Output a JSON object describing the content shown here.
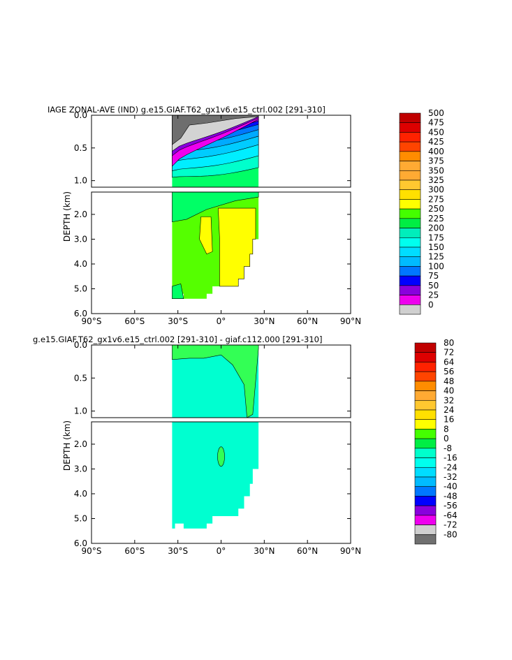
{
  "chart_data": [
    {
      "type": "heatmap",
      "title": "IAGE ZONAL-AVE (IND) g.e15.GIAF.T62_gx1v6.e15_ctrl.002 [291-310]",
      "ylabel": "DEPTH (km)",
      "x_ticks": [
        "90°S",
        "60°S",
        "30°S",
        "0°",
        "30°N",
        "60°N",
        "90°N"
      ],
      "x_tick_values": [
        -90,
        -60,
        -30,
        0,
        30,
        60,
        90
      ],
      "upper_y_ticks": [
        "0.0",
        "0.5",
        "1.0"
      ],
      "upper_y_tick_values": [
        0.0,
        0.5,
        1.0
      ],
      "lower_y_ticks": [
        "2.0",
        "3.0",
        "4.0",
        "5.0",
        "6.0"
      ],
      "lower_y_tick_values": [
        2,
        3,
        4,
        5,
        6
      ],
      "ylim_upper": [
        0,
        1.1
      ],
      "ylim_lower": [
        1.1,
        6.0
      ],
      "xlim": [
        -90,
        90
      ],
      "data_lat_range": [
        -34,
        26
      ],
      "colorbar_levels": [
        "500",
        "475",
        "450",
        "425",
        "400",
        "375",
        "350",
        "325",
        "300",
        "275",
        "250",
        "225",
        "200",
        "175",
        "150",
        "125",
        "100",
        "75",
        "50",
        "25",
        "0"
      ],
      "colorbar_colors": [
        "#c00000",
        "#dd0000",
        "#ff2200",
        "#ff4400",
        "#ff8c00",
        "#ffaa33",
        "#ffaa33",
        "#ffc830",
        "#ffe000",
        "#ffff00",
        "#44ff00",
        "#00ee44",
        "#00eebb",
        "#00ffee",
        "#00ddff",
        "#00bbff",
        "#0077ff",
        "#0000ff",
        "#8a00dd",
        "#ee00ee",
        "#d0d0d0",
        "#707070"
      ],
      "colors": {
        "upper_surface": "#6e6e6e",
        "upper_band_50": "#d3d3d3",
        "upper_band_75": "#ee00ee",
        "upper_band_100": "#8800dd",
        "upper_band_125": "#0011ff",
        "upper_band_150": "#0077ff",
        "upper_band_175": "#00aaff",
        "upper_band_200": "#00ccff",
        "upper_band_225": "#00eeff",
        "upper_band_250": "#00ffcc",
        "upper_band_275": "#00ff66",
        "deep_green": "#55ff00",
        "deep_yellow": "#ffff00",
        "bottom_teal": "#00ff66"
      }
    },
    {
      "type": "heatmap",
      "title": "g.e15.GIAF.T62_gx1v6.e15_ctrl.002 [291-310] - giaf.c112.000 [291-310]",
      "ylabel": "DEPTH (km)",
      "x_ticks": [
        "90°S",
        "60°S",
        "30°S",
        "0°",
        "30°N",
        "60°N",
        "90°N"
      ],
      "x_tick_values": [
        -90,
        -60,
        -30,
        0,
        30,
        60,
        90
      ],
      "upper_y_ticks": [
        "0.0",
        "0.5",
        "1.0"
      ],
      "upper_y_tick_values": [
        0.0,
        0.5,
        1.0
      ],
      "lower_y_ticks": [
        "2.0",
        "3.0",
        "4.0",
        "5.0",
        "6.0"
      ],
      "lower_y_tick_values": [
        2,
        3,
        4,
        5,
        6
      ],
      "ylim_upper": [
        0,
        1.1
      ],
      "ylim_lower": [
        1.1,
        6.0
      ],
      "xlim": [
        -90,
        90
      ],
      "data_lat_range": [
        -34,
        26
      ],
      "colorbar_levels": [
        "80",
        "72",
        "64",
        "56",
        "48",
        "40",
        "32",
        "24",
        "16",
        "8",
        "0",
        "-8",
        "-16",
        "-24",
        "-32",
        "-40",
        "-48",
        "-56",
        "-64",
        "-72",
        "-80"
      ],
      "colorbar_colors": [
        "#c00000",
        "#dd0000",
        "#ff2200",
        "#ff4400",
        "#ff8c00",
        "#ffaa33",
        "#ffc830",
        "#ffe000",
        "#ffff00",
        "#44ff00",
        "#00ee44",
        "#00ffcc",
        "#00ffee",
        "#00ddff",
        "#00bbff",
        "#0077ff",
        "#0000ff",
        "#8a00dd",
        "#ee00ee",
        "#d0d0d0",
        "#707070"
      ],
      "colors": {
        "main": "#00ffd0",
        "positive": "#33ff55"
      }
    }
  ]
}
